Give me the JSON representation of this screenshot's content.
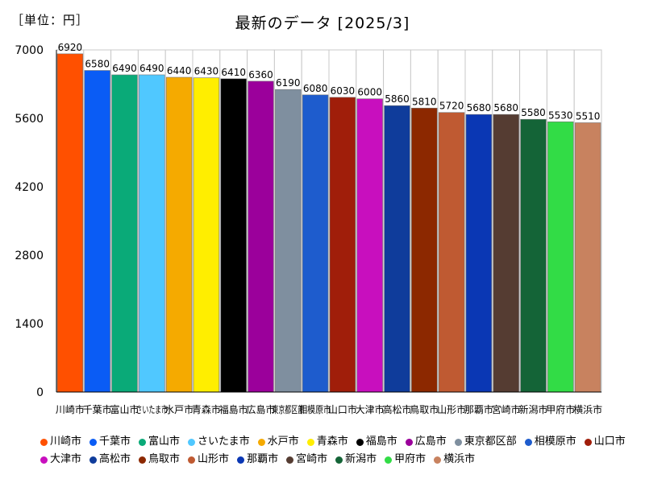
{
  "unit_label": "［単位：円］",
  "chart_data": {
    "type": "bar",
    "title": "最新のデータ [2025/3]",
    "xlabel": "",
    "ylabel": "",
    "ylim": [
      0,
      7000
    ],
    "yticks": [
      0,
      1400,
      2800,
      4200,
      5600,
      7000
    ],
    "categories": [
      "川崎市",
      "千葉市",
      "富山市",
      "さいたま市",
      "水戸市",
      "青森市",
      "福島市",
      "広島市",
      "東京都区部",
      "相模原市",
      "山口市",
      "大津市",
      "高松市",
      "鳥取市",
      "山形市",
      "那覇市",
      "宮崎市",
      "新潟市",
      "甲府市",
      "横浜市"
    ],
    "values": [
      6920,
      6580,
      6490,
      6490,
      6440,
      6430,
      6410,
      6360,
      6190,
      6080,
      6030,
      6000,
      5860,
      5810,
      5720,
      5680,
      5680,
      5580,
      5530,
      5510
    ],
    "colors": [
      "#ff5000",
      "#0a5cf5",
      "#0aaa78",
      "#50c8ff",
      "#f5aa00",
      "#ffee00",
      "#000000",
      "#9b009b",
      "#7f8f9f",
      "#1e5ccd",
      "#a01e0a",
      "#c80fbe",
      "#0f3c9b",
      "#8c2800",
      "#bf5a32",
      "#0a37b4",
      "#553c32",
      "#146437",
      "#32dc46",
      "#c8825f"
    ],
    "legend_position": "bottom"
  }
}
